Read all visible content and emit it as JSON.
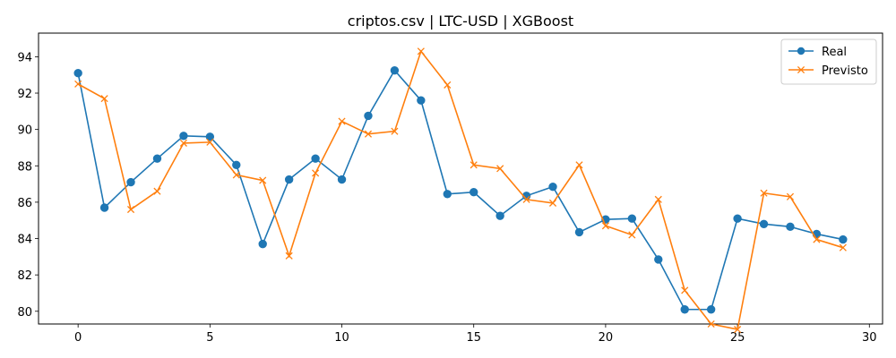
{
  "chart_data": {
    "type": "line",
    "title": "criptos.csv | LTC-USD | XGBoost",
    "xlabel": "",
    "ylabel": "",
    "xlim": [
      -1.5,
      30.5
    ],
    "ylim": [
      79.3,
      95.3
    ],
    "xticks": [
      0,
      5,
      10,
      15,
      20,
      25,
      30
    ],
    "yticks": [
      80,
      82,
      84,
      86,
      88,
      90,
      92,
      94
    ],
    "grid": false,
    "legend_position": "top-right",
    "x": [
      0,
      1,
      2,
      3,
      4,
      5,
      6,
      7,
      8,
      9,
      10,
      11,
      12,
      13,
      14,
      15,
      16,
      17,
      18,
      19,
      20,
      21,
      22,
      23,
      24,
      25,
      26,
      27,
      28,
      29
    ],
    "series": [
      {
        "name": "Real",
        "color": "#1f77b4",
        "marker": "circle",
        "values": [
          93.1,
          85.7,
          87.1,
          88.4,
          89.65,
          89.6,
          88.05,
          83.7,
          87.25,
          88.4,
          87.25,
          90.75,
          93.25,
          91.6,
          86.45,
          86.55,
          85.25,
          86.35,
          86.85,
          84.35,
          85.05,
          85.1,
          82.85,
          80.1,
          80.1,
          85.1,
          84.8,
          84.65,
          84.25,
          83.95
        ]
      },
      {
        "name": "Previsto",
        "color": "#ff7f0e",
        "marker": "x",
        "values": [
          92.5,
          91.7,
          85.6,
          86.6,
          89.25,
          89.3,
          87.5,
          87.2,
          83.05,
          87.6,
          90.45,
          89.75,
          89.9,
          94.3,
          92.45,
          88.05,
          87.85,
          86.15,
          85.95,
          88.05,
          84.7,
          84.2,
          86.15,
          81.15,
          79.3,
          79.0,
          86.5,
          86.3,
          83.95,
          83.5
        ]
      }
    ]
  }
}
